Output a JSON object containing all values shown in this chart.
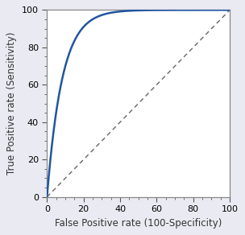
{
  "xlabel": "False Positive rate (100-Specificity)",
  "ylabel": "True Positive rate (Sensitivity)",
  "xlim": [
    0,
    100
  ],
  "ylim": [
    0,
    100
  ],
  "xticks": [
    0,
    20,
    40,
    60,
    80,
    100
  ],
  "yticks": [
    0,
    20,
    40,
    60,
    80,
    100
  ],
  "roc_color": "#2255a0",
  "diagonal_color": "#666666",
  "roc_linewidth": 1.8,
  "diagonal_linewidth": 1.0,
  "background_color": "#eaeaf2",
  "axes_background": "#ffffff",
  "axes_edge_color": "#888888",
  "xlabel_fontsize": 8.5,
  "ylabel_fontsize": 8.5,
  "tick_fontsize": 8,
  "roc_k": 0.12,
  "minor_ticks": true
}
